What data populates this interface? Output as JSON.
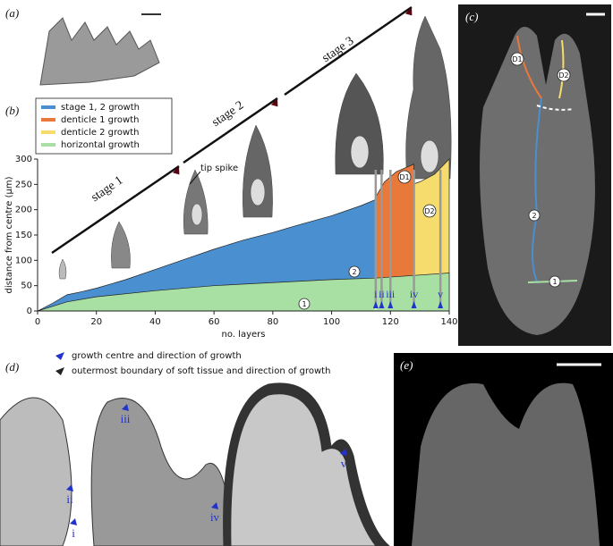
{
  "panels": {
    "a": "(a)",
    "b": "(b)",
    "c": "(c)",
    "d": "(d)",
    "e": "(e)"
  },
  "chart_data": {
    "type": "area",
    "xlabel": "no. layers",
    "ylabel": "distance from centre (μm)",
    "xlim": [
      0,
      140
    ],
    "ylim": [
      0,
      300
    ],
    "xticks": [
      0,
      20,
      40,
      60,
      80,
      100,
      120,
      140
    ],
    "yticks": [
      0,
      50,
      100,
      150,
      200,
      250,
      300
    ],
    "legend": "upper left",
    "series": [
      {
        "name": "stage 1, 2 growth",
        "color": "#4a8fcf",
        "x": [
          0,
          5,
          10,
          15,
          20,
          30,
          40,
          50,
          60,
          70,
          80,
          90,
          100,
          110,
          115
        ],
        "values": [
          0,
          15,
          32,
          38,
          45,
          62,
          82,
          102,
          122,
          140,
          155,
          172,
          188,
          208,
          220
        ]
      },
      {
        "name": "denticle 1 growth",
        "color": "#e8793a",
        "x": [
          115,
          118,
          122,
          128
        ],
        "values": [
          225,
          255,
          275,
          290
        ]
      },
      {
        "name": "denticle 2 growth",
        "color": "#f6dc6c",
        "x": [
          115,
          120,
          125,
          130,
          135,
          140
        ],
        "values": [
          220,
          232,
          245,
          255,
          270,
          300
        ]
      },
      {
        "name": "horizontal growth",
        "color": "#a8e0a4",
        "x": [
          0,
          10,
          20,
          40,
          60,
          80,
          100,
          115,
          140
        ],
        "values": [
          0,
          18,
          28,
          40,
          50,
          56,
          62,
          65,
          75
        ]
      }
    ],
    "stages": [
      "stage 1",
      "stage 2",
      "stage 3"
    ],
    "tip_label": "tip spike",
    "circle_labels": [
      "1",
      "2",
      "D1",
      "D2"
    ],
    "markers": [
      {
        "label": "i",
        "x": 115
      },
      {
        "label": "ii",
        "x": 117
      },
      {
        "label": "iii",
        "x": 120
      },
      {
        "label": "iv",
        "x": 128
      },
      {
        "label": "v",
        "x": 137
      }
    ]
  },
  "panel_c": {
    "labels": [
      "D1",
      "D2",
      "2",
      "1"
    ]
  },
  "panel_d": {
    "legend": [
      "growth centre and direction of growth",
      "outermost boundary of soft tissue and direction of growth"
    ],
    "labels": [
      "i",
      "ii",
      "iii",
      "iv",
      "v"
    ]
  }
}
